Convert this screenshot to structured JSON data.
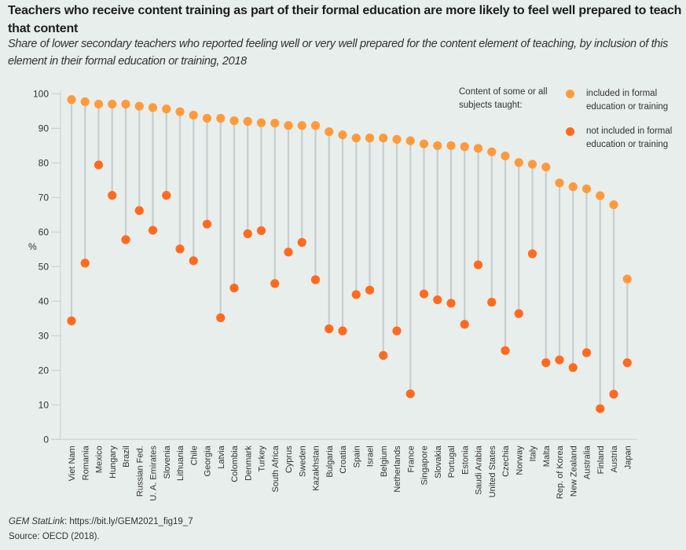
{
  "title": "Teachers who receive content training as part of their formal education are more likely to feel well prepared to teach that content",
  "subtitle": "Share of lower secondary teachers who reported feeling well or very well prepared for the content element of teaching, by inclusion of this element in their formal education or training, 2018",
  "legend": {
    "heading": "Content of some or all subjects taught:",
    "items": [
      {
        "label": "included in formal education or training",
        "color": "#ff9a3c"
      },
      {
        "label": "not included in formal education or training",
        "color": "#ff6a1f"
      }
    ]
  },
  "footer": {
    "statlink_label": "GEM StatLink",
    "statlink_url": ": https://bit.ly/GEM2021_fig19_7",
    "source": "Source: OECD (2018)."
  },
  "colors": {
    "stem": "#c8cdcf",
    "axis": "#c8cdcf",
    "included": "#ff9a3c",
    "not_included": "#ff6a1f"
  },
  "chart_data": {
    "type": "dot-range",
    "title": "Teachers who receive content training as part of their formal education are more likely to feel well prepared to teach that content",
    "xlabel": "",
    "ylabel": "%",
    "ylim": [
      0,
      100
    ],
    "yticks": [
      0,
      10,
      20,
      30,
      40,
      50,
      60,
      70,
      80,
      90,
      100
    ],
    "grid": false,
    "legend_position": "top-right",
    "categories": [
      "Viet Nam",
      "Romania",
      "Mexico",
      "Hungary",
      "Brazil",
      "Russian Fed.",
      "U. A. Emirates",
      "Slovenia",
      "Lithuania",
      "Chile",
      "Georgia",
      "Latvia",
      "Colombia",
      "Denmark",
      "Turkey",
      "South Africa",
      "Cyprus",
      "Sweden",
      "Kazakhstan",
      "Bulgaria",
      "Croatia",
      "Spain",
      "Israel",
      "Belgium",
      "Netherlands",
      "France",
      "Singapore",
      "Slovakia",
      "Portugal",
      "Estonia",
      "Saudi Arabia",
      "United States",
      "Czechia",
      "Norway",
      "Italy",
      "Malta",
      "Rep. of Korea",
      "New Zealand",
      "Australia",
      "Finland",
      "Austria",
      "Japan"
    ],
    "series": [
      {
        "name": "included in formal education or training",
        "values": [
          98.3,
          97.7,
          97.0,
          97.0,
          97.0,
          96.4,
          96.0,
          95.6,
          94.8,
          93.8,
          92.9,
          92.9,
          92.2,
          92.0,
          91.6,
          91.5,
          90.8,
          90.8,
          90.8,
          89.0,
          88.1,
          87.2,
          87.2,
          87.2,
          86.8,
          86.4,
          85.5,
          85.0,
          85.0,
          84.7,
          84.2,
          83.2,
          82.0,
          80.1,
          79.6,
          78.8,
          74.2,
          73.1,
          72.5,
          70.5,
          67.9,
          46.4
        ]
      },
      {
        "name": "not included in formal education or training",
        "values": [
          34.3,
          51.0,
          79.4,
          70.6,
          57.8,
          66.2,
          60.5,
          70.6,
          55.1,
          51.7,
          62.3,
          35.2,
          43.8,
          59.5,
          60.4,
          45.1,
          54.2,
          57.0,
          46.2,
          32.0,
          31.4,
          41.9,
          43.2,
          24.3,
          31.4,
          13.2,
          42.1,
          40.4,
          39.4,
          33.3,
          50.5,
          39.7,
          25.7,
          36.4,
          53.7,
          22.2,
          23.0,
          20.8,
          25.1,
          8.9,
          13.1,
          22.2
        ]
      }
    ]
  }
}
